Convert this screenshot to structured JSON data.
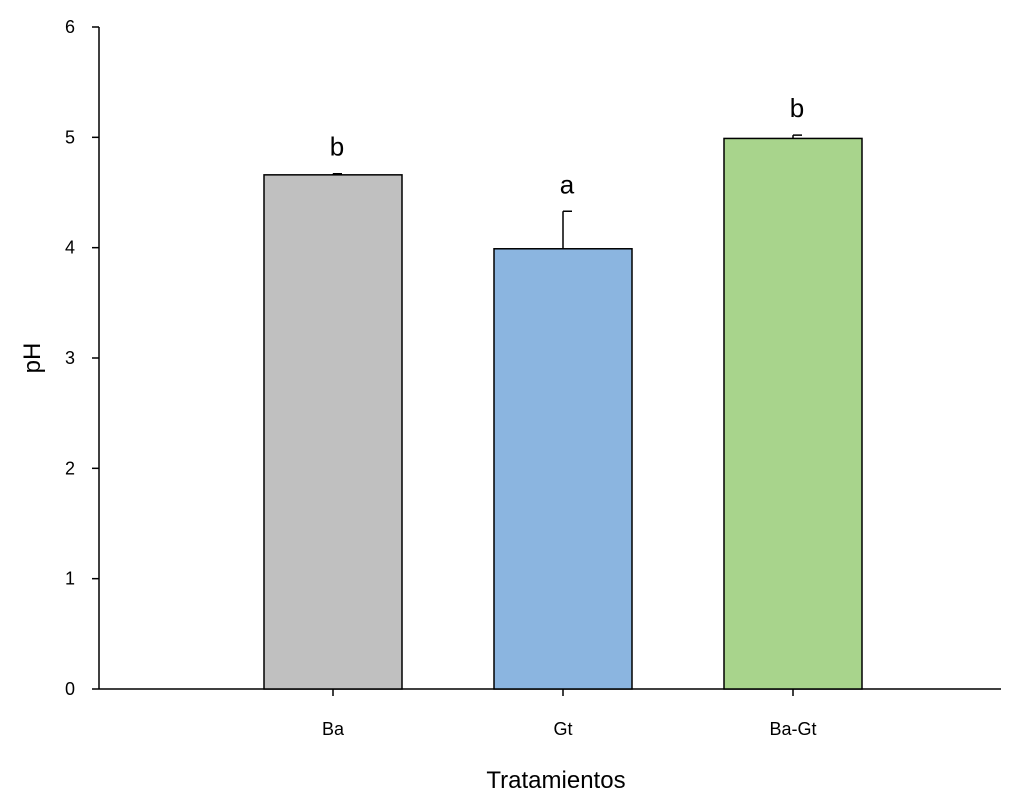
{
  "chart_data": {
    "type": "bar",
    "title": "",
    "xlabel": "Tratamientos",
    "ylabel": "pH",
    "ylim": [
      0,
      6
    ],
    "yticks": [
      0,
      1,
      2,
      3,
      4,
      5,
      6
    ],
    "grid": false,
    "legend": "none",
    "categories": [
      "Ba",
      "Gt",
      "Ba-Gt"
    ],
    "values": [
      4.66,
      3.99,
      4.99
    ],
    "errors": [
      0.01,
      0.34,
      0.03
    ],
    "significance": [
      "b",
      "a",
      "b"
    ],
    "colors": [
      "#c0c0c0",
      "#8bb5e0",
      "#a8d48c"
    ]
  }
}
